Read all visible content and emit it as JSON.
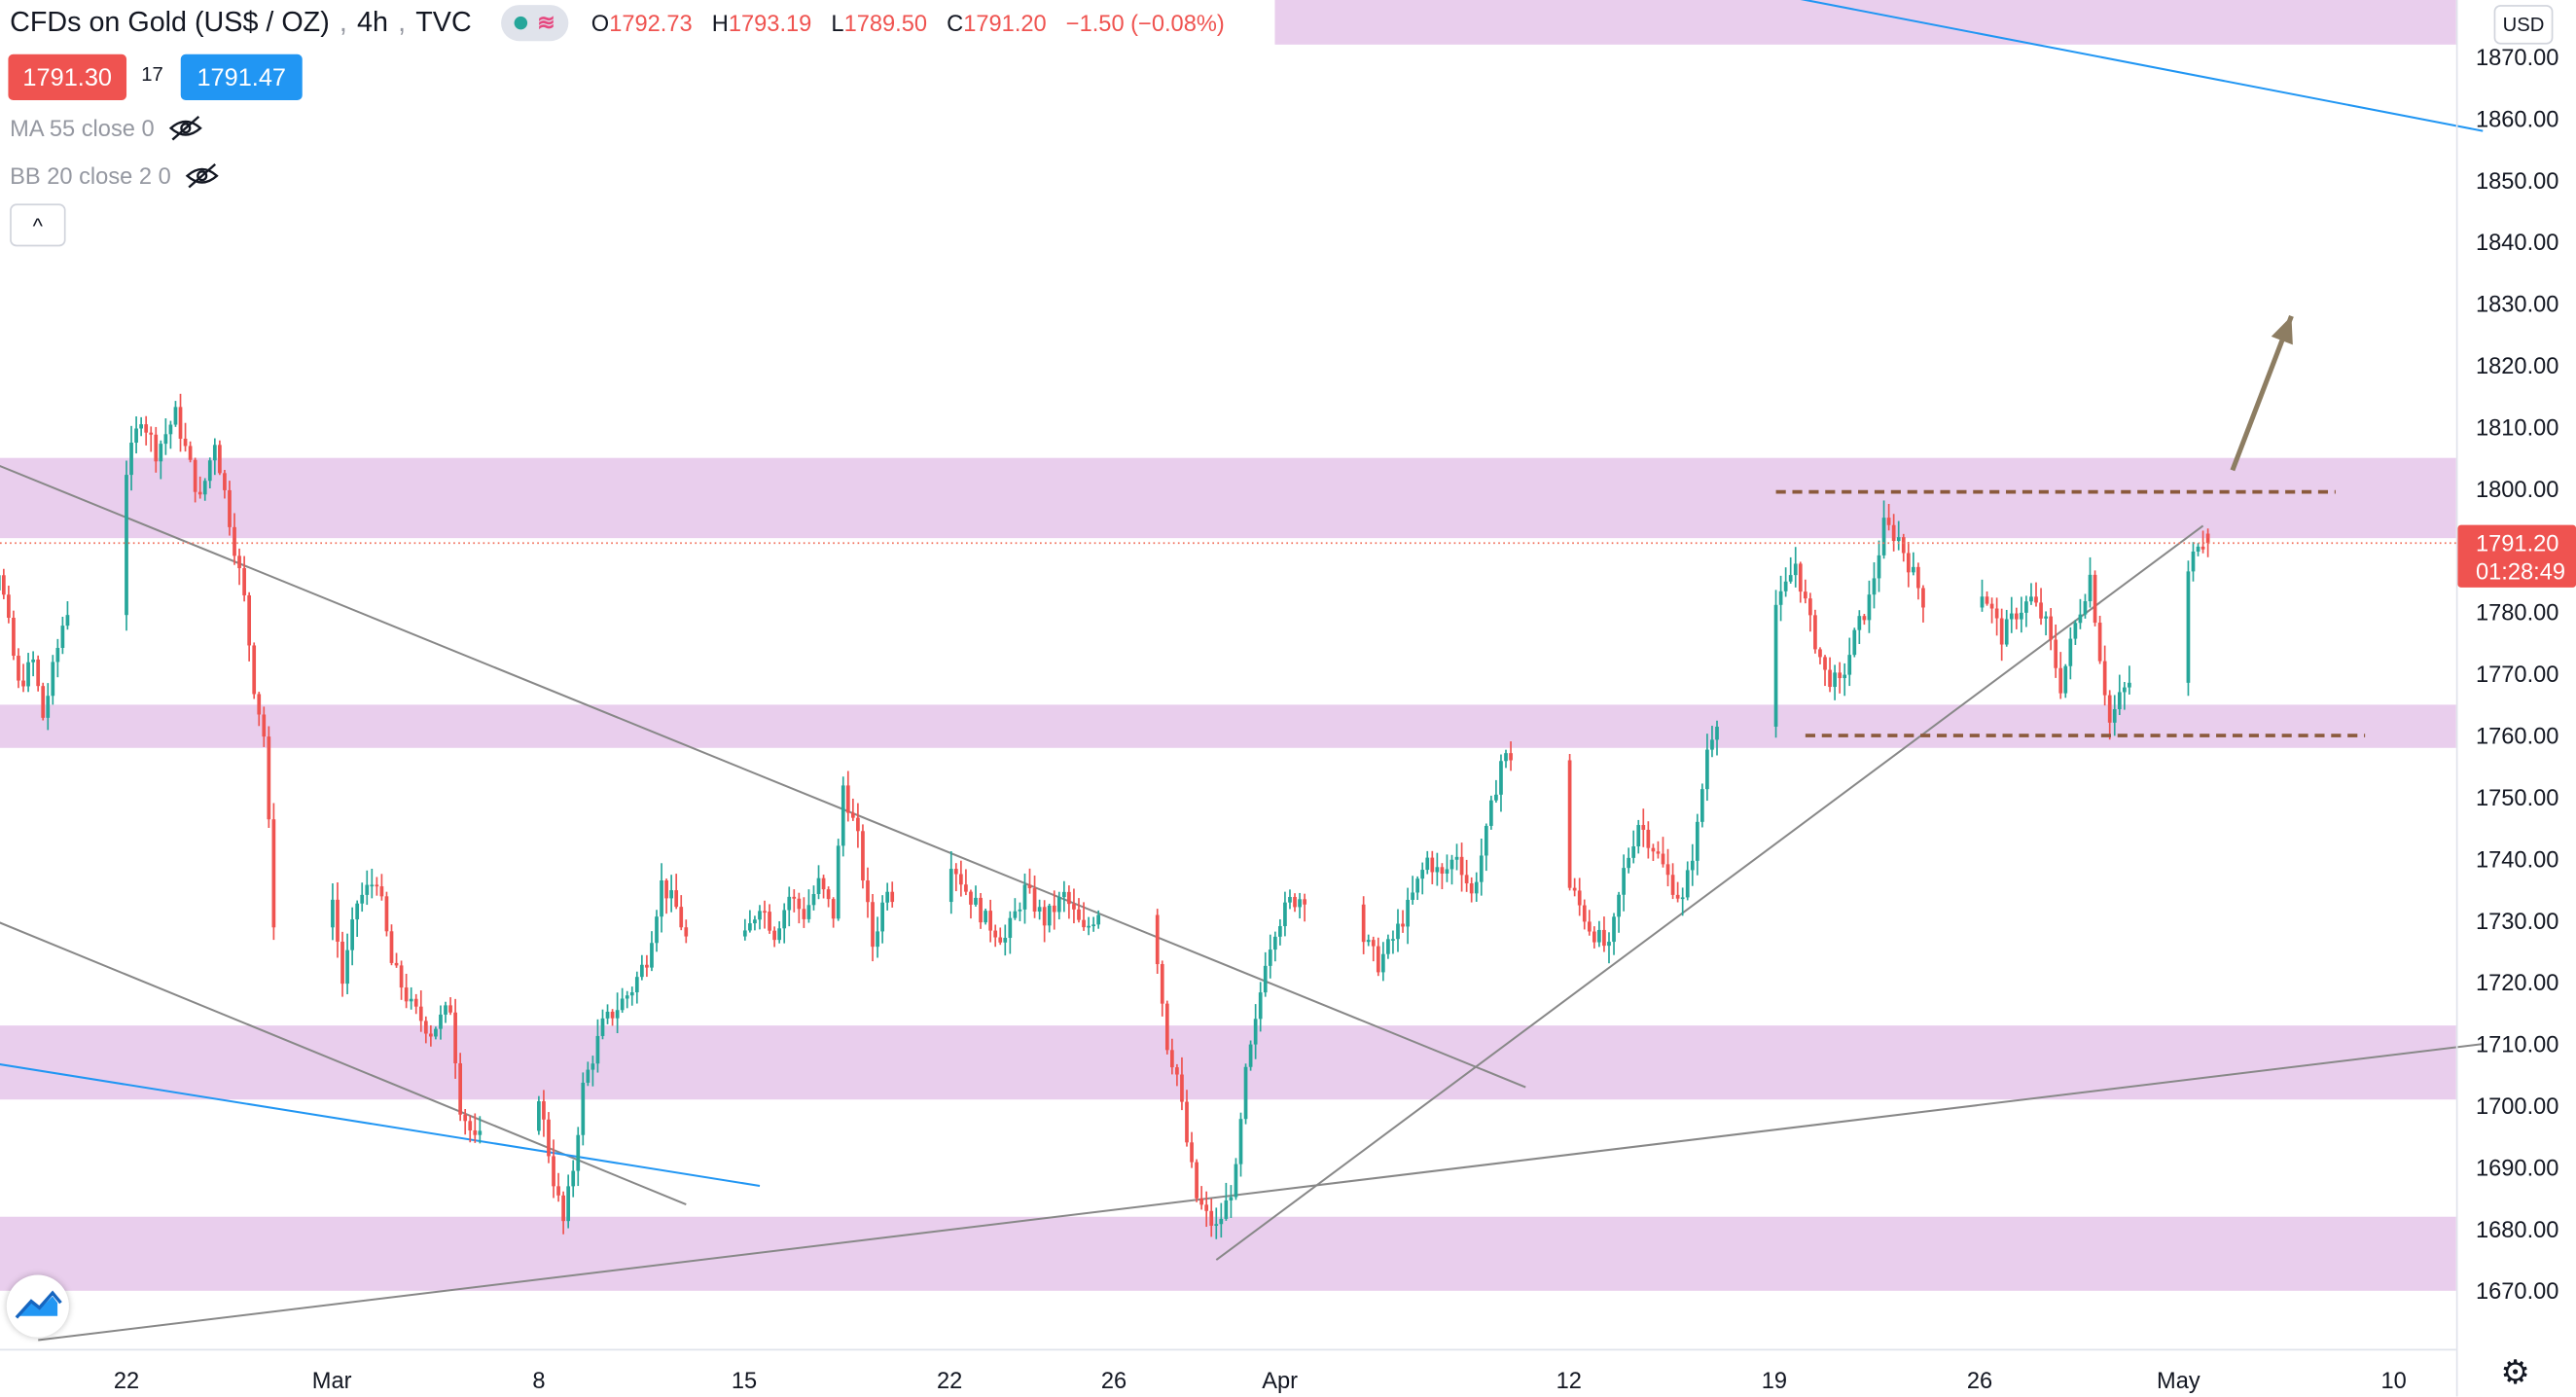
{
  "header": {
    "title": "CFDs on Gold (US$ / OZ)",
    "interval": "4h",
    "source": "TVC",
    "ohlc": {
      "o_label": "O",
      "o": "1792.73",
      "h_label": "H",
      "h": "1793.19",
      "l_label": "L",
      "l": "1789.50",
      "c_label": "C",
      "c": "1791.20",
      "change": "−1.50 (−0.08%)"
    }
  },
  "quote": {
    "bid": "1791.30",
    "spread": "17",
    "ask": "1791.47"
  },
  "indicators": [
    {
      "label": "MA 55 close 0",
      "icon": "eye-off-icon"
    },
    {
      "label": "BB 20 close 2 0",
      "icon": "eye-off-icon"
    }
  ],
  "currency": "USD",
  "current_price": {
    "price": "1791.20",
    "countdown": "01:28:49"
  },
  "colors": {
    "up": "#26a69a",
    "down": "#ef5350",
    "zone": "#e1bee7",
    "trendline": "#888888",
    "blue_line": "#2196f3",
    "arrow": "#8d7d62",
    "dashed": "#8b5a3c",
    "price_line": "#f2725e"
  },
  "chart_data": {
    "type": "candlestick",
    "symbol": "CFDs on Gold (US$ / OZ)",
    "interval": "4h",
    "ylim": [
      1662,
      1880
    ],
    "price_axis_ticks": [
      "1870.00",
      "1860.00",
      "1850.00",
      "1840.00",
      "1830.00",
      "1820.00",
      "1810.00",
      "1800.00",
      "1790.00",
      "1780.00",
      "1770.00",
      "1760.00",
      "1750.00",
      "1740.00",
      "1730.00",
      "1720.00",
      "1710.00",
      "1700.00",
      "1690.00",
      "1680.00",
      "1670.00"
    ],
    "time_axis_labels": [
      "22",
      "Mar",
      "8",
      "15",
      "22",
      "26",
      "Apr",
      "12",
      "19",
      "26",
      "May",
      "10"
    ],
    "last": {
      "open": 1792.73,
      "high": 1793.19,
      "low": 1789.5,
      "close": 1791.2
    },
    "anchors": [
      [
        "02-16 12:00",
        1790
      ],
      [
        "02-17 00:00",
        1778
      ],
      [
        "02-17 16:00",
        1787
      ],
      [
        "02-18 08:00",
        1768
      ],
      [
        "02-18 20:00",
        1772
      ],
      [
        "02-19 04:00",
        1763
      ],
      [
        "02-19 20:00",
        1778
      ],
      [
        "02-20 16:00",
        1790
      ],
      [
        "02-21 04:00",
        1798
      ],
      [
        "02-22 00:00",
        1803
      ],
      [
        "02-22 12:00",
        1812
      ],
      [
        "02-23 00:00",
        1806
      ],
      [
        "02-23 16:00",
        1812
      ],
      [
        "02-24 12:00",
        1798
      ],
      [
        "02-25 00:00",
        1808
      ],
      [
        "02-25 12:00",
        1795
      ],
      [
        "02-26 00:00",
        1782
      ],
      [
        "02-26 08:00",
        1768
      ],
      [
        "02-26 16:00",
        1760
      ],
      [
        "02-27 00:00",
        1730
      ],
      [
        "02-27 12:00",
        1738
      ],
      [
        "02-28 04:00",
        1749
      ],
      [
        "02-28 20:00",
        1740
      ],
      [
        "03-01 08:00",
        1720
      ],
      [
        "03-01 20:00",
        1733
      ],
      [
        "03-02 12:00",
        1737
      ],
      [
        "03-03 00:00",
        1723
      ],
      [
        "03-03 16:00",
        1716
      ],
      [
        "03-04 08:00",
        1712
      ],
      [
        "03-05 00:00",
        1716
      ],
      [
        "03-05 08:00",
        1700
      ],
      [
        "03-05 20:00",
        1694
      ],
      [
        "03-06 12:00",
        1696
      ],
      [
        "03-07 04:00",
        1702
      ],
      [
        "03-07 16:00",
        1712
      ],
      [
        "03-08 04:00",
        1697
      ],
      [
        "03-08 12:00",
        1688
      ],
      [
        "03-08 20:00",
        1681
      ],
      [
        "03-09 04:00",
        1690
      ],
      [
        "03-09 12:00",
        1703
      ],
      [
        "03-10 04:00",
        1713
      ],
      [
        "03-10 16:00",
        1716
      ],
      [
        "03-11 04:00",
        1719
      ],
      [
        "03-11 16:00",
        1724
      ],
      [
        "03-12 04:00",
        1736
      ],
      [
        "03-12 16:00",
        1732
      ],
      [
        "03-13 00:00",
        1727
      ],
      [
        "03-13 12:00",
        1720
      ],
      [
        "03-14 00:00",
        1706
      ],
      [
        "03-14 12:00",
        1714
      ],
      [
        "03-15 00:00",
        1727
      ],
      [
        "03-15 12:00",
        1733
      ],
      [
        "03-16 00:00",
        1728
      ],
      [
        "03-16 12:00",
        1734
      ],
      [
        "03-17 00:00",
        1731
      ],
      [
        "03-17 12:00",
        1736
      ],
      [
        "03-18 00:00",
        1731
      ],
      [
        "03-18 08:00",
        1752
      ],
      [
        "03-18 20:00",
        1743
      ],
      [
        "03-19 08:00",
        1726
      ],
      [
        "03-19 20:00",
        1736
      ],
      [
        "03-20 08:00",
        1731
      ],
      [
        "03-20 20:00",
        1741
      ],
      [
        "03-21 08:00",
        1734
      ],
      [
        "03-22 00:00",
        1740
      ],
      [
        "03-22 12:00",
        1735
      ],
      [
        "03-23 04:00",
        1730
      ],
      [
        "03-23 20:00",
        1727
      ],
      [
        "03-24 12:00",
        1735
      ],
      [
        "03-25 04:00",
        1730
      ],
      [
        "03-25 20:00",
        1734
      ],
      [
        "03-26 12:00",
        1728
      ],
      [
        "03-27 04:00",
        1733
      ],
      [
        "03-27 20:00",
        1726
      ],
      [
        "03-28 12:00",
        1730
      ],
      [
        "03-29 00:00",
        1724
      ],
      [
        "03-29 08:00",
        1710
      ],
      [
        "03-29 16:00",
        1705
      ],
      [
        "03-30 00:00",
        1694
      ],
      [
        "03-30 08:00",
        1685
      ],
      [
        "03-30 16:00",
        1682
      ],
      [
        "03-31 00:00",
        1680
      ],
      [
        "03-31 08:00",
        1684
      ],
      [
        "03-31 16:00",
        1689
      ],
      [
        "04-01 00:00",
        1705
      ],
      [
        "04-01 08:00",
        1713
      ],
      [
        "04-01 16:00",
        1724
      ],
      [
        "04-02 00:00",
        1729
      ],
      [
        "04-02 12:00",
        1733
      ],
      [
        "04-03 08:00",
        1735
      ],
      [
        "04-04 00:00",
        1736
      ],
      [
        "04-05 00:00",
        1727
      ],
      [
        "04-05 12:00",
        1723
      ],
      [
        "04-06 00:00",
        1727
      ],
      [
        "04-06 12:00",
        1732
      ],
      [
        "04-07 04:00",
        1740
      ],
      [
        "04-07 16:00",
        1737
      ],
      [
        "04-08 04:00",
        1741
      ],
      [
        "04-08 16:00",
        1734
      ],
      [
        "04-09 04:00",
        1744
      ],
      [
        "04-09 16:00",
        1756
      ],
      [
        "04-10 04:00",
        1757
      ],
      [
        "04-10 16:00",
        1747
      ],
      [
        "04-11 04:00",
        1743
      ],
      [
        "04-11 16:00",
        1738
      ],
      [
        "04-12 04:00",
        1734
      ],
      [
        "04-12 16:00",
        1729
      ],
      [
        "04-13 08:00",
        1725
      ],
      [
        "04-13 20:00",
        1738
      ],
      [
        "04-14 08:00",
        1746
      ],
      [
        "04-14 20:00",
        1742
      ],
      [
        "04-15 08:00",
        1737
      ],
      [
        "04-15 20:00",
        1733
      ],
      [
        "04-16 08:00",
        1745
      ],
      [
        "04-16 16:00",
        1758
      ],
      [
        "04-17 00:00",
        1763
      ],
      [
        "04-17 12:00",
        1768
      ],
      [
        "04-18 00:00",
        1774
      ],
      [
        "04-18 12:00",
        1779
      ],
      [
        "04-19 04:00",
        1782
      ],
      [
        "04-19 16:00",
        1788
      ],
      [
        "04-20 04:00",
        1778
      ],
      [
        "04-20 16:00",
        1770
      ],
      [
        "04-21 04:00",
        1768
      ],
      [
        "04-21 16:00",
        1776
      ],
      [
        "04-22 04:00",
        1782
      ],
      [
        "04-22 16:00",
        1794
      ],
      [
        "04-23 04:00",
        1792
      ],
      [
        "04-23 16:00",
        1786
      ],
      [
        "04-24 04:00",
        1780
      ],
      [
        "04-24 16:00",
        1784
      ],
      [
        "04-25 04:00",
        1778
      ],
      [
        "04-25 16:00",
        1786
      ],
      [
        "04-26 04:00",
        1782
      ],
      [
        "04-26 16:00",
        1776
      ],
      [
        "04-27 04:00",
        1780
      ],
      [
        "04-27 16:00",
        1782
      ],
      [
        "04-28 04:00",
        1778
      ],
      [
        "04-28 16:00",
        1768
      ],
      [
        "04-29 04:00",
        1778
      ],
      [
        "04-29 16:00",
        1786
      ],
      [
        "04-30 00:00",
        1773
      ],
      [
        "04-30 08:00",
        1762
      ],
      [
        "04-30 16:00",
        1766
      ],
      [
        "05-01 04:00",
        1770
      ],
      [
        "05-01 16:00",
        1767
      ],
      [
        "05-02 04:00",
        1770
      ],
      [
        "05-02 16:00",
        1776
      ],
      [
        "05-03 00:00",
        1786
      ],
      [
        "05-03 08:00",
        1792
      ],
      [
        "05-03 16:00",
        1791.2
      ]
    ],
    "horizontal_zones": [
      [
        1792,
        1805
      ],
      [
        1758,
        1765
      ],
      [
        1701,
        1713
      ],
      [
        1670,
        1682
      ],
      [
        1872,
        1882
      ]
    ],
    "dashed_levels": [
      {
        "price": 1799.5,
        "from": "04-19 00:00",
        "to": "05-08 00:00"
      },
      {
        "price": 1760.0,
        "from": "04-20 00:00",
        "to": "05-09 00:00"
      }
    ],
    "trendlines": [
      {
        "color": "gray",
        "from": [
          "02-16 00:00",
          1807
        ],
        "to": [
          "04-10 12:00",
          1703
        ]
      },
      {
        "color": "gray",
        "from": [
          "02-16 00:00",
          1733
        ],
        "to": [
          "03-13 00:00",
          1684
        ]
      },
      {
        "color": "gray",
        "from": [
          "03-31 00:00",
          1675
        ],
        "to": [
          "05-03 12:00",
          1794
        ]
      },
      {
        "color": "gray",
        "from": [
          "02-19 00:00",
          1662
        ],
        "to": [
          "05-13 00:00",
          1710
        ]
      },
      {
        "color": "blue",
        "from": [
          "02-16 00:00",
          1708
        ],
        "to": [
          "03-15 12:00",
          1687
        ]
      },
      {
        "color": "blue",
        "from": [
          "04-17 00:00",
          1882
        ],
        "to": [
          "05-13 00:00",
          1858
        ]
      }
    ],
    "arrow": {
      "from": [
        "05-04 12:00",
        1803
      ],
      "to": [
        "05-06 12:00",
        1828
      ]
    }
  }
}
